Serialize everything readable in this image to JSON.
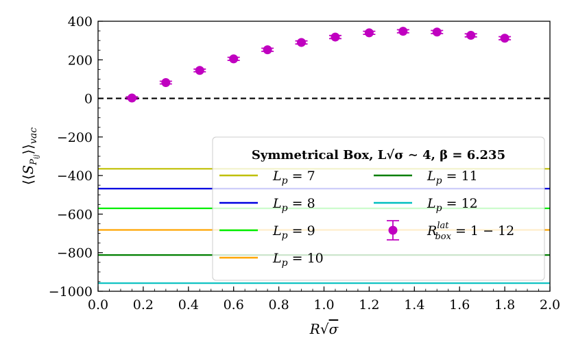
{
  "chart_data": {
    "type": "scatter",
    "title": "",
    "xlabel": "R√σ",
    "ylabel": "⟨⟨S_{P_ij}⟩⟩_vac",
    "xlim": [
      0.0,
      2.0
    ],
    "ylim": [
      -1000,
      400
    ],
    "grid": false,
    "x_ticks": [
      "0.0",
      "0.2",
      "0.4",
      "0.6",
      "0.8",
      "1.0",
      "1.2",
      "1.4",
      "1.6",
      "1.8",
      "2.0"
    ],
    "y_ticks": [
      "400",
      "200",
      "0",
      "−200",
      "−400",
      "−600",
      "−800",
      "−1000"
    ],
    "zero_line": {
      "y": 0,
      "color": "#000000",
      "style": "dashed"
    },
    "reference_lines": [
      {
        "name": "L_p = 7",
        "label_main": "L",
        "label_sub": "p",
        "label_val": " = 7",
        "y": -365,
        "color": "#bfbf00"
      },
      {
        "name": "L_p = 8",
        "label_main": "L",
        "label_sub": "p",
        "label_val": " = 8",
        "y": -468,
        "color": "#0000e0"
      },
      {
        "name": "L_p = 9",
        "label_main": "L",
        "label_sub": "p",
        "label_val": " = 9",
        "y": -570,
        "color": "#00ee00"
      },
      {
        "name": "L_p = 10",
        "label_main": "L",
        "label_sub": "p",
        "label_val": " = 10",
        "y": -682,
        "color": "#ffa500"
      },
      {
        "name": "L_p = 11",
        "label_main": "L",
        "label_sub": "p",
        "label_val": " = 11",
        "y": -812,
        "color": "#007f00"
      },
      {
        "name": "L_p = 12",
        "label_main": "L",
        "label_sub": "p",
        "label_val": " = 12",
        "y": -958,
        "color": "#00bfbf"
      }
    ],
    "series": [
      {
        "name": "R_box^lat = 1 − 12",
        "label_main": "R",
        "label_sup": "lat",
        "label_sub": "box",
        "label_val": " = 1 − 12",
        "color": "#c000c0",
        "x": [
          0.15,
          0.3,
          0.45,
          0.6,
          0.75,
          0.9,
          1.05,
          1.2,
          1.35,
          1.5,
          1.65,
          1.8
        ],
        "y": [
          2,
          82,
          145,
          205,
          252,
          290,
          318,
          340,
          348,
          344,
          327,
          312
        ],
        "yerr": [
          6,
          7,
          7,
          8,
          8,
          8,
          8,
          8,
          8,
          8,
          8,
          8
        ]
      }
    ],
    "legend": {
      "placement": "lower-right",
      "title": "Symmetrical Box, L√σ ∼ 4, β = 6.235",
      "columns": 2
    }
  }
}
